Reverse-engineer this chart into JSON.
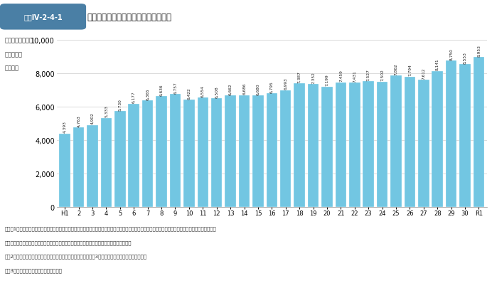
{
  "title_box_label": "図表Ⅳ-2-4-1",
  "title": "主要装備品などの維持整備経費の推移",
  "ylabel_line1": "主要装備品などの",
  "ylabel_line2": "維持整備費",
  "ylabel_line3": "（億円）",
  "categories": [
    "H1",
    "2",
    "3",
    "4",
    "5",
    "6",
    "7",
    "8",
    "9",
    "10",
    "11",
    "12",
    "13",
    "14",
    "15",
    "16",
    "17",
    "18",
    "19",
    "20",
    "21",
    "22",
    "23",
    "24",
    "25",
    "26",
    "27",
    "28",
    "29",
    "30",
    "R1"
  ],
  "values": [
    4393,
    4763,
    4902,
    5333,
    5730,
    6177,
    6365,
    6636,
    6757,
    6422,
    6554,
    6508,
    6662,
    6686,
    6680,
    6795,
    6993,
    7387,
    7352,
    7199,
    7459,
    7431,
    7527,
    7502,
    7862,
    7794,
    7612,
    8141,
    8750,
    8553,
    8953
  ],
  "bar_color": "#72c6e2",
  "bar_edge_color": "#72c6e2",
  "background_color": "#ffffff",
  "plot_bg_color": "#ffffff",
  "grid_color": "#cccccc",
  "ylim": [
    0,
    10000
  ],
  "yticks": [
    0,
    2000,
    4000,
    6000,
    8000,
    10000
  ],
  "value_fontsize": 4.2,
  "value_color": "#222222",
  "note1": "（注）1　「装備品などの維持整備費」とは、陸海空各自衛隊の装備品などの修理や消耗品の代価及び役務費などにかかる予算額（各自衛隊の修理費から、",
  "note1b": "　　　　艦船の艦齢延伸及び航空機の近代化改修などのための修理費を除いたもの）を示す。",
  "note2": "　　2　令和元年度については、防災・減災、国土強靴化のための3か年緊急対策にかかる経費を含む。",
  "note3": "　　3　金額は契約ベースの数値である。",
  "header_box_color": "#4a7fa5",
  "header_text_color": "#ffffff"
}
